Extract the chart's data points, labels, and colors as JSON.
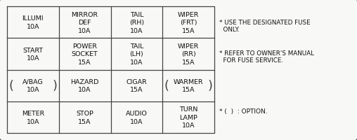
{
  "bg_color": "#f8f8f6",
  "border_color": "#333333",
  "grid_color": "#444444",
  "text_color": "#111111",
  "figsize": [
    5.08,
    2.01
  ],
  "dpi": 100,
  "cells": [
    {
      "row": 0,
      "col": 0,
      "lines": [
        "ILLUMI",
        "10A"
      ],
      "optional": false
    },
    {
      "row": 0,
      "col": 1,
      "lines": [
        "MIRROR",
        "DEF",
        "10A"
      ],
      "optional": false
    },
    {
      "row": 0,
      "col": 2,
      "lines": [
        "TAIL",
        "(RH)",
        "10A"
      ],
      "optional": false
    },
    {
      "row": 0,
      "col": 3,
      "lines": [
        "WIPER",
        "(FRT)",
        "15A"
      ],
      "optional": false
    },
    {
      "row": 1,
      "col": 0,
      "lines": [
        "START",
        "10A"
      ],
      "optional": false
    },
    {
      "row": 1,
      "col": 1,
      "lines": [
        "POWER",
        "SOCKET",
        "15A"
      ],
      "optional": false
    },
    {
      "row": 1,
      "col": 2,
      "lines": [
        "TAIL",
        "(LH)",
        "10A"
      ],
      "optional": false
    },
    {
      "row": 1,
      "col": 3,
      "lines": [
        "WIPER",
        "(RR)",
        "15A"
      ],
      "optional": false
    },
    {
      "row": 2,
      "col": 0,
      "lines": [
        "A/BAG",
        "10A"
      ],
      "optional": true
    },
    {
      "row": 2,
      "col": 1,
      "lines": [
        "HAZARD",
        "10A"
      ],
      "optional": false
    },
    {
      "row": 2,
      "col": 2,
      "lines": [
        "CIGAR",
        "15A"
      ],
      "optional": false
    },
    {
      "row": 2,
      "col": 3,
      "lines": [
        "WARMER",
        "15A"
      ],
      "optional": true
    },
    {
      "row": 3,
      "col": 0,
      "lines": [
        "METER",
        "10A"
      ],
      "optional": false
    },
    {
      "row": 3,
      "col": 1,
      "lines": [
        "STOP",
        "15A"
      ],
      "optional": false
    },
    {
      "row": 3,
      "col": 2,
      "lines": [
        "AUDIO",
        "10A"
      ],
      "optional": false
    },
    {
      "row": 3,
      "col": 3,
      "lines": [
        "TURN",
        "LAMP",
        "10A"
      ],
      "optional": false
    }
  ],
  "note1_line1": "* USE THE DESIGNATED FUSE",
  "note1_line2": "  ONLY.",
  "note2_line1": "* REFER TO OWNER'S MANUAL",
  "note2_line2": "  FOR FUSE SERVICE.",
  "footnote": "* (  )  : OPTION.",
  "cell_font_size": 6.8,
  "note_font_size": 6.3,
  "footnote_font_size": 6.5
}
